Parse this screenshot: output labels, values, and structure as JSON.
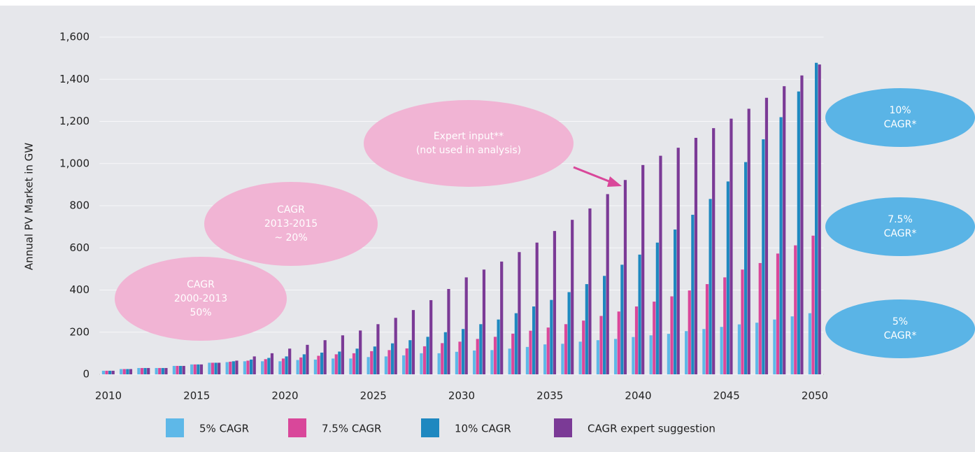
{
  "chart_data": {
    "type": "bar",
    "y_label": "Annual PV Market in GW",
    "categories": [
      "2010",
      null,
      null,
      null,
      null,
      "2015",
      null,
      null,
      null,
      null,
      "2020",
      null,
      null,
      null,
      null,
      "2025",
      null,
      null,
      null,
      null,
      "2030",
      null,
      null,
      null,
      null,
      "2035",
      null,
      null,
      null,
      null,
      "2040",
      null,
      null,
      null,
      null,
      "2045",
      null,
      null,
      null,
      null,
      "2050"
    ],
    "series": [
      {
        "name": "5% CAGR",
        "color": "#5eb8e8",
        "values": [
          17,
          25,
          30,
          30,
          40,
          47,
          55,
          58,
          62,
          62,
          62,
          68,
          70,
          75,
          75,
          82,
          85,
          90,
          100,
          100,
          107,
          113,
          115,
          122,
          130,
          142,
          145,
          155,
          162,
          168,
          177,
          185,
          192,
          205,
          215,
          225,
          237,
          245,
          260,
          275,
          290
        ]
      },
      {
        "name": "7.5% CAGR",
        "color": "#d9479a",
        "values": [
          17,
          25,
          30,
          30,
          40,
          47,
          55,
          60,
          65,
          72,
          75,
          80,
          88,
          95,
          100,
          110,
          115,
          123,
          133,
          148,
          155,
          168,
          178,
          193,
          207,
          222,
          238,
          255,
          277,
          298,
          322,
          345,
          370,
          398,
          428,
          460,
          497,
          528,
          573,
          612,
          658
        ]
      },
      {
        "name": "10% CAGR",
        "color": "#1e88c0",
        "values": [
          17,
          25,
          30,
          30,
          40,
          47,
          55,
          62,
          70,
          78,
          85,
          95,
          103,
          108,
          122,
          132,
          147,
          162,
          178,
          200,
          215,
          238,
          260,
          290,
          322,
          353,
          390,
          428,
          467,
          520,
          568,
          625,
          687,
          757,
          832,
          915,
          1007,
          1115,
          1220,
          1342,
          1478
        ]
      },
      {
        "name": "CAGR expert suggestion",
        "color": "#7b3a96",
        "values": [
          17,
          25,
          30,
          30,
          40,
          47,
          55,
          65,
          85,
          100,
          122,
          140,
          162,
          185,
          208,
          238,
          268,
          305,
          352,
          405,
          460,
          497,
          535,
          580,
          625,
          680,
          733,
          787,
          855,
          922,
          993,
          1037,
          1075,
          1122,
          1168,
          1213,
          1260,
          1312,
          1367,
          1418,
          1470
        ]
      }
    ],
    "ylim": [
      0,
      1600
    ],
    "yticks": [
      0,
      {
        "value": 200,
        "label": "200"
      },
      {
        "value": 400,
        "label": "400"
      },
      {
        "value": 600,
        "label": "600"
      },
      {
        "value": 800,
        "label": "800"
      },
      {
        "value": 1000,
        "label": "1,000"
      },
      {
        "value": 1200,
        "label": "1,200"
      },
      {
        "value": 1400,
        "label": "1,400"
      },
      {
        "value": 1600,
        "label": "1,600"
      }
    ],
    "grid": true,
    "annotations": [
      {
        "lines": [
          "CAGR",
          "2000-2013",
          "50%"
        ]
      },
      {
        "lines": [
          "CAGR",
          "2013-2015",
          "~ 20%"
        ]
      },
      {
        "lines": [
          "Expert input**",
          "(not used in analysis)"
        ]
      },
      {
        "lines": [
          "10%",
          "CAGR*"
        ]
      },
      {
        "lines": [
          "7.5%",
          "CAGR*"
        ]
      },
      {
        "lines": [
          "5%",
          "CAGR*"
        ]
      }
    ]
  }
}
